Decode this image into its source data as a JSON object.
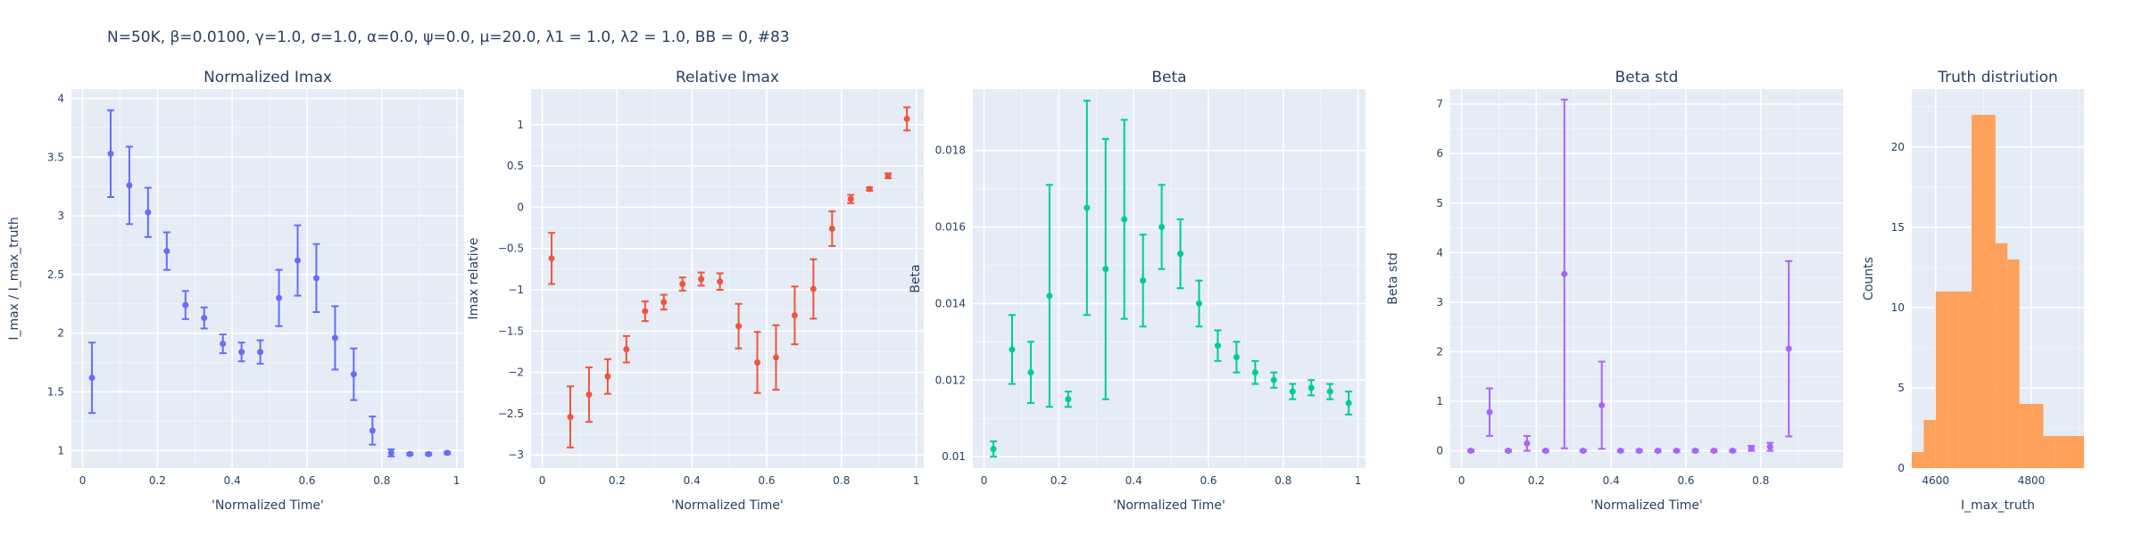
{
  "suptitle": "N=50K, β=0.0100, γ=1.0, σ=1.0,  α=0.0, ψ=0.0, μ=20.0, λ1 = 1.0, λ2 = 1.0, BB = 0, #83",
  "chart_data": [
    {
      "type": "scatter",
      "title": "Normalized Imax",
      "xlabel": "'Normalized Time'",
      "ylabel": "I_max / I_max_truth",
      "color": "#636efa",
      "xlim": [
        -0.03,
        1.02
      ],
      "ylim": [
        0.85,
        4.08
      ],
      "xticks": [
        0,
        0.2,
        0.4,
        0.6,
        0.8,
        1
      ],
      "xtick_labels": [
        "0",
        "0.2",
        "0.4",
        "0.6",
        "0.8",
        "1"
      ],
      "yticks": [
        1,
        1.5,
        2,
        2.5,
        3,
        3.5,
        4
      ],
      "ytick_labels": [
        "1",
        "1.5",
        "2",
        "2.5",
        "3",
        "3.5",
        "4"
      ],
      "x": [
        0.025,
        0.075,
        0.125,
        0.175,
        0.225,
        0.275,
        0.325,
        0.375,
        0.425,
        0.475,
        0.525,
        0.575,
        0.625,
        0.675,
        0.725,
        0.775,
        0.825,
        0.875,
        0.925,
        0.975
      ],
      "y": [
        1.62,
        3.53,
        3.26,
        3.03,
        2.7,
        2.24,
        2.13,
        1.91,
        1.84,
        1.84,
        2.3,
        2.62,
        2.47,
        1.96,
        1.65,
        1.17,
        0.98,
        0.97,
        0.97,
        0.98
      ],
      "err": [
        0.3,
        0.37,
        0.33,
        0.21,
        0.16,
        0.12,
        0.09,
        0.08,
        0.08,
        0.1,
        0.24,
        0.3,
        0.29,
        0.27,
        0.22,
        0.12,
        0.03,
        0.01,
        0.01,
        0.01
      ]
    },
    {
      "type": "scatter",
      "title": "Relative Imax",
      "xlabel": "'Normalized Time'",
      "ylabel": "Imax relative",
      "color": "#ef553b",
      "xlim": [
        -0.03,
        1.02
      ],
      "ylim": [
        -3.16,
        1.43
      ],
      "xticks": [
        0,
        0.2,
        0.4,
        0.6,
        0.8,
        1
      ],
      "xtick_labels": [
        "0",
        "0.2",
        "0.4",
        "0.6",
        "0.8",
        "1"
      ],
      "yticks": [
        -3,
        -2.5,
        -2,
        -1.5,
        -1,
        -0.5,
        0,
        0.5,
        1
      ],
      "ytick_labels": [
        "−3",
        "−2.5",
        "−2",
        "−1.5",
        "−1",
        "−0.5",
        "0",
        "0.5",
        "1"
      ],
      "x": [
        0.025,
        0.075,
        0.125,
        0.175,
        0.225,
        0.275,
        0.325,
        0.375,
        0.425,
        0.475,
        0.525,
        0.575,
        0.625,
        0.675,
        0.725,
        0.775,
        0.825,
        0.875,
        0.925,
        0.975
      ],
      "y": [
        -0.62,
        -2.54,
        -2.27,
        -2.05,
        -1.72,
        -1.26,
        -1.15,
        -0.93,
        -0.87,
        -0.9,
        -1.44,
        -1.88,
        -1.82,
        -1.31,
        -0.99,
        -0.26,
        0.1,
        0.22,
        0.38,
        1.07
      ],
      "err": [
        0.31,
        0.37,
        0.33,
        0.21,
        0.16,
        0.12,
        0.09,
        0.08,
        0.08,
        0.1,
        0.27,
        0.37,
        0.39,
        0.35,
        0.36,
        0.21,
        0.05,
        0.02,
        0.03,
        0.14
      ]
    },
    {
      "type": "scatter",
      "title": "Beta",
      "xlabel": "'Normalized Time'",
      "ylabel": "Beta",
      "color": "#00cc96",
      "xlim": [
        -0.03,
        1.02
      ],
      "ylim": [
        0.0097,
        0.0196
      ],
      "xticks": [
        0,
        0.2,
        0.4,
        0.6,
        0.8,
        1
      ],
      "xtick_labels": [
        "0",
        "0.2",
        "0.4",
        "0.6",
        "0.8",
        "1"
      ],
      "yticks": [
        0.01,
        0.012,
        0.014,
        0.016,
        0.018
      ],
      "ytick_labels": [
        "0.01",
        "0.012",
        "0.014",
        "0.016",
        "0.018"
      ],
      "x": [
        0.025,
        0.075,
        0.125,
        0.175,
        0.225,
        0.275,
        0.325,
        0.375,
        0.425,
        0.475,
        0.525,
        0.575,
        0.625,
        0.675,
        0.725,
        0.775,
        0.825,
        0.875,
        0.925,
        0.975
      ],
      "y": [
        0.0102,
        0.0128,
        0.0122,
        0.0142,
        0.0115,
        0.0165,
        0.0149,
        0.0162,
        0.0146,
        0.016,
        0.0153,
        0.014,
        0.0129,
        0.0126,
        0.0122,
        0.012,
        0.0117,
        0.0118,
        0.0117,
        0.0114
      ],
      "err": [
        0.0002,
        0.0009,
        0.0008,
        0.0029,
        0.0002,
        0.0028,
        0.0034,
        0.0026,
        0.0012,
        0.0011,
        0.0009,
        0.0006,
        0.0004,
        0.0004,
        0.0003,
        0.0002,
        0.0002,
        0.0002,
        0.0002,
        0.0003
      ]
    },
    {
      "type": "scatter",
      "title": "Beta std",
      "xlabel": "'Normalized Time'",
      "ylabel": "Beta std",
      "color": "#ab63fa",
      "xlim": [
        -0.03,
        1.02
      ],
      "ylim": [
        -0.35,
        7.3
      ],
      "xticks": [
        0,
        0.2,
        0.4,
        0.6,
        0.8
      ],
      "xtick_labels": [
        "0",
        "0.2",
        "0.4",
        "0.6",
        "0.8"
      ],
      "yticks": [
        0,
        1,
        2,
        3,
        4,
        5,
        6,
        7
      ],
      "ytick_labels": [
        "0",
        "1",
        "2",
        "3",
        "4",
        "5",
        "6",
        "7"
      ],
      "x": [
        0.025,
        0.075,
        0.125,
        0.175,
        0.225,
        0.275,
        0.325,
        0.375,
        0.425,
        0.475,
        0.525,
        0.575,
        0.625,
        0.675,
        0.725,
        0.775,
        0.825,
        0.875
      ],
      "y": [
        0.0,
        0.78,
        0.0,
        0.15,
        0.0,
        3.57,
        0.0,
        0.92,
        0.0,
        0.0,
        0.0,
        0.0,
        0.0,
        0.0,
        0.0,
        0.05,
        0.08,
        2.06
      ],
      "err": [
        0.02,
        0.48,
        0.02,
        0.15,
        0.02,
        3.52,
        0.02,
        0.88,
        0.02,
        0.02,
        0.02,
        0.02,
        0.02,
        0.02,
        0.02,
        0.05,
        0.08,
        1.77
      ]
    },
    {
      "type": "bar",
      "title": "Truth distriution",
      "xlabel": "I_max_truth",
      "ylabel": "Counts",
      "color": "#ffa15a",
      "xlim": [
        4550,
        4910
      ],
      "ylim": [
        0,
        23.6
      ],
      "xticks": [
        4600,
        4800
      ],
      "xtick_labels": [
        "4600",
        "4800"
      ],
      "yticks": [
        0,
        5,
        10,
        15,
        20
      ],
      "ytick_labels": [
        "0",
        "5",
        "10",
        "15",
        "20"
      ],
      "bins": [
        [
          4550,
          4575
        ],
        [
          4575,
          4600
        ],
        [
          4600,
          4625
        ],
        [
          4625,
          4650
        ],
        [
          4650,
          4675
        ],
        [
          4675,
          4700
        ],
        [
          4700,
          4725
        ],
        [
          4725,
          4750
        ],
        [
          4750,
          4775
        ],
        [
          4775,
          4800
        ],
        [
          4800,
          4825
        ],
        [
          4825,
          4850
        ],
        [
          4850,
          4910
        ]
      ],
      "values": [
        1,
        3,
        11,
        11,
        11,
        22,
        22,
        14,
        13,
        4,
        4,
        2,
        2
      ]
    }
  ]
}
